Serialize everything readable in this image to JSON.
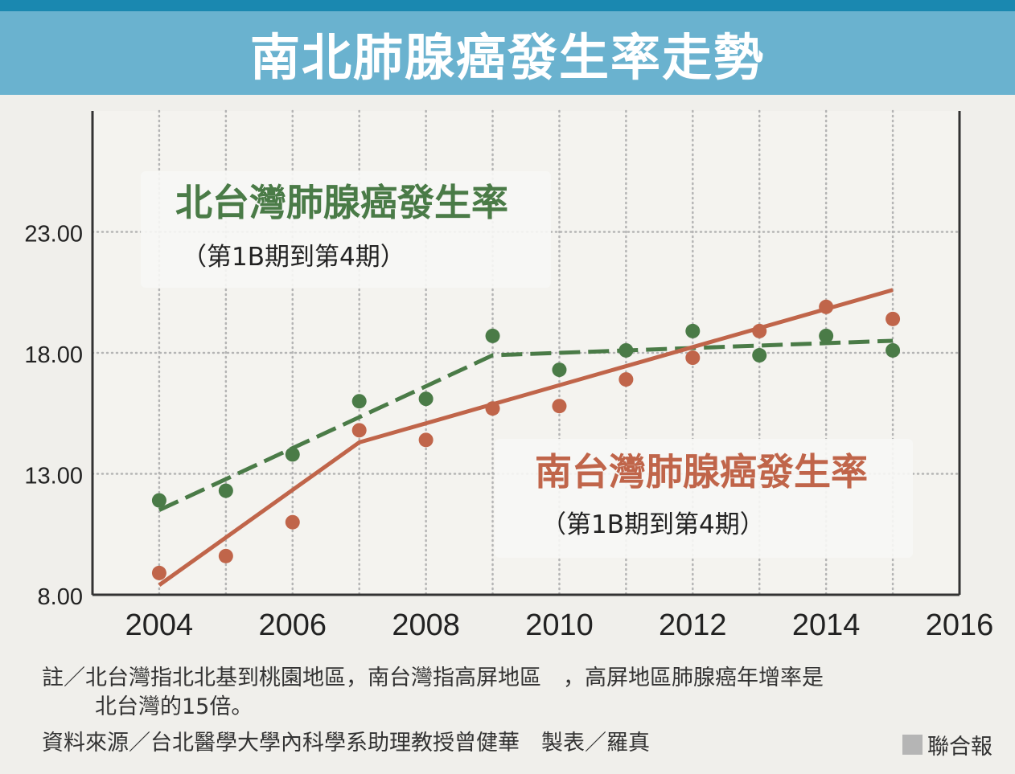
{
  "title": "南北肺腺癌發生率走勢",
  "chart_data": {
    "type": "line",
    "x_ticks": [
      "2004",
      "2006",
      "2008",
      "2010",
      "2012",
      "2014",
      "2016"
    ],
    "y_ticks": [
      "8.00",
      "13.00",
      "18.00",
      "23.00"
    ],
    "xlim": [
      2003,
      2016
    ],
    "ylim": [
      8,
      28
    ],
    "grid": true,
    "series": [
      {
        "name": "北台灣肺腺癌發生率",
        "subtitle": "（第1B期到第4期）",
        "color": "#4a7b47",
        "points": {
          "x": [
            2004,
            2005,
            2006,
            2007,
            2008,
            2009,
            2010,
            2011,
            2012,
            2013,
            2014,
            2015
          ],
          "y": [
            11.9,
            12.3,
            13.8,
            16.0,
            16.1,
            18.7,
            17.3,
            18.1,
            18.9,
            17.9,
            18.7,
            18.1
          ]
        },
        "trend": {
          "x": [
            2004,
            2009,
            2015
          ],
          "y": [
            11.5,
            17.9,
            18.5
          ],
          "style": "dashed"
        }
      },
      {
        "name": "南台灣肺腺癌發生率",
        "subtitle": "（第1B期到第4期）",
        "color": "#c0654a",
        "points": {
          "x": [
            2004,
            2005,
            2006,
            2007,
            2008,
            2009,
            2010,
            2011,
            2012,
            2013,
            2014,
            2015
          ],
          "y": [
            8.9,
            9.6,
            11.0,
            14.8,
            14.4,
            15.7,
            15.8,
            16.9,
            17.8,
            18.9,
            19.9,
            19.4
          ]
        },
        "trend": {
          "x": [
            2004,
            2007,
            2015
          ],
          "y": [
            8.4,
            14.3,
            20.6
          ],
          "style": "solid"
        }
      }
    ]
  },
  "notes": {
    "note_line1": "註／北台灣指北北基到桃園地區，南台灣指高屏地區　，高屏地區肺腺癌年增率是",
    "note_line2": "北台灣的15倍。",
    "source": "資料來源／台北醫學大學內科學系助理教授曾健華　製表／羅真",
    "brand": "聯合報"
  }
}
